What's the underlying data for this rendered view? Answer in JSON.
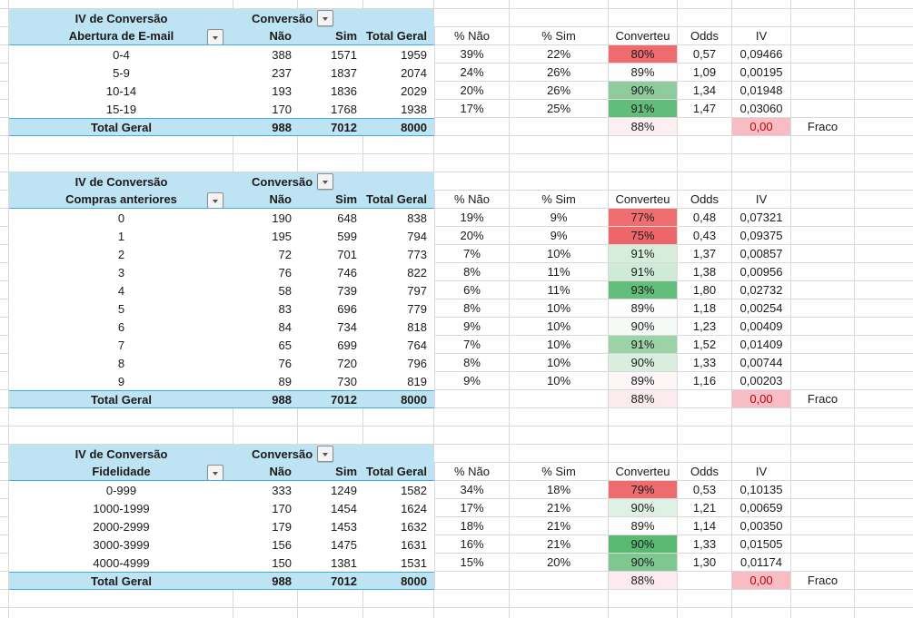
{
  "colors": {
    "header_fill": "#BEE3F2",
    "header_border": "#45AADB",
    "gridline": "#D9D9D9",
    "iv_total_fill": "#F8BDC4",
    "iv_total_text": "#C00000"
  },
  "pivot_common": {
    "title": "IV de Conversão",
    "columns_field": "Conversão",
    "col_no": "Não",
    "col_yes": "Sim",
    "col_total": "Total Geral",
    "stat_headers": [
      "% Não",
      "% Sim",
      "Converteu",
      "Odds",
      "IV"
    ],
    "total_label": "Total Geral"
  },
  "tables": [
    {
      "row_field": "Abertura de E-mail",
      "rows": [
        {
          "label": "0-4",
          "nao": "388",
          "sim": "1571",
          "total": "1959",
          "pct_nao": "39%",
          "pct_sim": "22%",
          "converteu": "80%",
          "converteu_fill": "#EE6B6E",
          "odds": "0,57",
          "iv": "0,09466"
        },
        {
          "label": "5-9",
          "nao": "237",
          "sim": "1837",
          "total": "2074",
          "pct_nao": "24%",
          "pct_sim": "26%",
          "converteu": "89%",
          "converteu_fill": "#FCFDFC",
          "odds": "1,09",
          "iv": "0,00195"
        },
        {
          "label": "10-14",
          "nao": "193",
          "sim": "1836",
          "total": "2029",
          "pct_nao": "20%",
          "pct_sim": "26%",
          "converteu": "90%",
          "converteu_fill": "#8FCB9D",
          "odds": "1,34",
          "iv": "0,01948"
        },
        {
          "label": "15-19",
          "nao": "170",
          "sim": "1768",
          "total": "1938",
          "pct_nao": "17%",
          "pct_sim": "25%",
          "converteu": "91%",
          "converteu_fill": "#62BD7A",
          "odds": "1,47",
          "iv": "0,03060"
        }
      ],
      "total": {
        "nao": "988",
        "sim": "7012",
        "total": "8000",
        "converteu": "88%",
        "converteu_fill": "#FCEFF2",
        "iv": "0,00",
        "strength": "Fraco"
      }
    },
    {
      "row_field": "Compras anteriores",
      "rows": [
        {
          "label": "0",
          "nao": "190",
          "sim": "648",
          "total": "838",
          "pct_nao": "19%",
          "pct_sim": "9%",
          "converteu": "77%",
          "converteu_fill": "#EF6F71",
          "odds": "0,48",
          "iv": "0,07321"
        },
        {
          "label": "1",
          "nao": "195",
          "sim": "599",
          "total": "794",
          "pct_nao": "20%",
          "pct_sim": "9%",
          "converteu": "75%",
          "converteu_fill": "#ED666A",
          "odds": "0,43",
          "iv": "0,09375"
        },
        {
          "label": "2",
          "nao": "72",
          "sim": "701",
          "total": "773",
          "pct_nao": "7%",
          "pct_sim": "10%",
          "converteu": "91%",
          "converteu_fill": "#D7EDDC",
          "odds": "1,37",
          "iv": "0,00857"
        },
        {
          "label": "3",
          "nao": "76",
          "sim": "746",
          "total": "822",
          "pct_nao": "8%",
          "pct_sim": "11%",
          "converteu": "91%",
          "converteu_fill": "#CFEAD6",
          "odds": "1,38",
          "iv": "0,00956"
        },
        {
          "label": "4",
          "nao": "58",
          "sim": "739",
          "total": "797",
          "pct_nao": "6%",
          "pct_sim": "11%",
          "converteu": "93%",
          "converteu_fill": "#63BE7B",
          "odds": "1,80",
          "iv": "0,02732"
        },
        {
          "label": "5",
          "nao": "83",
          "sim": "696",
          "total": "779",
          "pct_nao": "8%",
          "pct_sim": "10%",
          "converteu": "89%",
          "converteu_fill": "#FCFDFC",
          "odds": "1,18",
          "iv": "0,00254"
        },
        {
          "label": "6",
          "nao": "84",
          "sim": "734",
          "total": "818",
          "pct_nao": "9%",
          "pct_sim": "10%",
          "converteu": "90%",
          "converteu_fill": "#F6FAF7",
          "odds": "1,23",
          "iv": "0,00409"
        },
        {
          "label": "7",
          "nao": "65",
          "sim": "699",
          "total": "764",
          "pct_nao": "7%",
          "pct_sim": "10%",
          "converteu": "91%",
          "converteu_fill": "#9BD2A8",
          "odds": "1,52",
          "iv": "0,01409"
        },
        {
          "label": "8",
          "nao": "76",
          "sim": "720",
          "total": "796",
          "pct_nao": "8%",
          "pct_sim": "10%",
          "converteu": "90%",
          "converteu_fill": "#D9EEDF",
          "odds": "1,33",
          "iv": "0,00744"
        },
        {
          "label": "9",
          "nao": "89",
          "sim": "730",
          "total": "819",
          "pct_nao": "9%",
          "pct_sim": "10%",
          "converteu": "89%",
          "converteu_fill": "#FDF6F7",
          "odds": "1,16",
          "iv": "0,00203"
        }
      ],
      "total": {
        "nao": "988",
        "sim": "7012",
        "total": "8000",
        "converteu": "88%",
        "converteu_fill": "#FBEBEE",
        "iv": "0,00",
        "strength": "Fraco"
      }
    },
    {
      "row_field": "Fidelidade",
      "rows": [
        {
          "label": "0-999",
          "nao": "333",
          "sim": "1249",
          "total": "1582",
          "pct_nao": "34%",
          "pct_sim": "18%",
          "converteu": "79%",
          "converteu_fill": "#EE6B6E",
          "odds": "0,53",
          "iv": "0,10135"
        },
        {
          "label": "1000-1999",
          "nao": "170",
          "sim": "1454",
          "total": "1624",
          "pct_nao": "17%",
          "pct_sim": "21%",
          "converteu": "90%",
          "converteu_fill": "#DFF1E4",
          "odds": "1,21",
          "iv": "0,00659"
        },
        {
          "label": "2000-2999",
          "nao": "179",
          "sim": "1453",
          "total": "1632",
          "pct_nao": "18%",
          "pct_sim": "21%",
          "converteu": "89%",
          "converteu_fill": "#FDFEFD",
          "odds": "1,14",
          "iv": "0,00350"
        },
        {
          "label": "3000-3999",
          "nao": "156",
          "sim": "1475",
          "total": "1631",
          "pct_nao": "16%",
          "pct_sim": "21%",
          "converteu": "90%",
          "converteu_fill": "#59BA72",
          "odds": "1,33",
          "iv": "0,01505"
        },
        {
          "label": "4000-4999",
          "nao": "150",
          "sim": "1381",
          "total": "1531",
          "pct_nao": "15%",
          "pct_sim": "20%",
          "converteu": "90%",
          "converteu_fill": "#7EC790",
          "odds": "1,30",
          "iv": "0,01174"
        }
      ],
      "total": {
        "nao": "988",
        "sim": "7012",
        "total": "8000",
        "converteu": "88%",
        "converteu_fill": "#FBEBEE",
        "iv": "0,00",
        "strength": "Fraco"
      }
    }
  ]
}
